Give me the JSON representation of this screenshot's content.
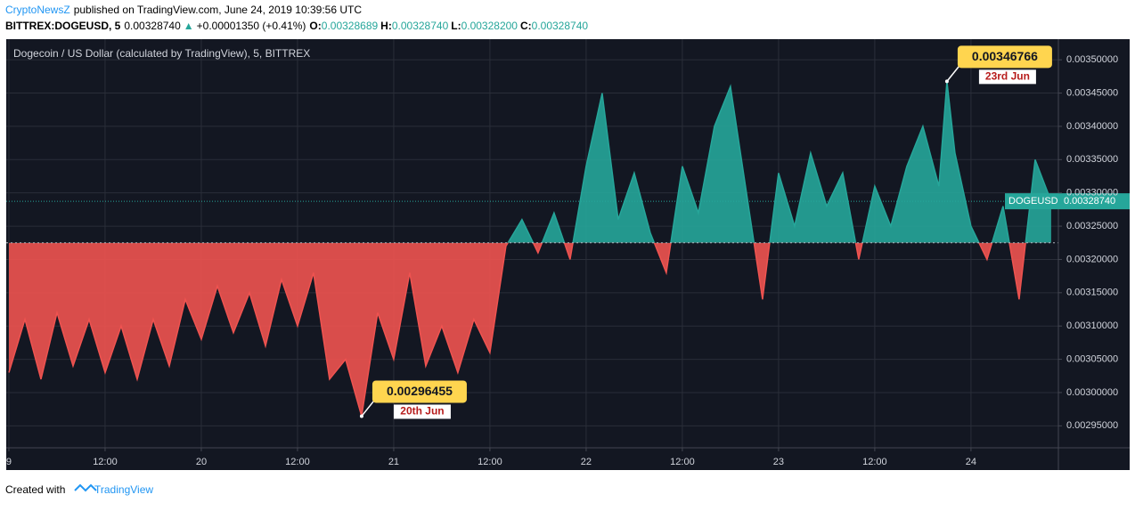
{
  "header": {
    "publisher": "CryptoNewsZ",
    "published": "published on TradingView.com, June 24, 2019 10:39:56 UTC",
    "symbol": "BITTREX:DOGEUSD, 5",
    "last": "0.00328740",
    "arrow": "▲",
    "change": "+0.00001350 (+0.41%)",
    "o_label": "O:",
    "o": "0.00328689",
    "h_label": "H:",
    "h": "0.00328740",
    "l_label": "L:",
    "l": "0.00328200",
    "c_label": "C:",
    "c": "0.00328740"
  },
  "chart_data": {
    "type": "baseline",
    "title": "Dogecoin / US Dollar (calculated by TradingView), 5, BITTREX",
    "x": [
      0,
      2,
      4,
      6,
      8,
      10,
      12,
      14,
      16,
      18,
      20,
      22,
      24,
      26,
      28,
      30,
      32,
      34,
      36,
      38,
      40,
      42,
      44,
      46,
      48,
      50,
      52,
      54,
      56,
      58,
      60,
      62,
      64,
      66,
      68,
      70,
      72,
      74,
      76,
      78,
      80,
      82,
      84,
      86,
      88,
      90,
      92,
      94,
      96,
      98,
      100,
      102,
      104,
      106,
      108,
      110,
      112,
      114,
      116,
      117,
      118,
      120,
      122,
      124,
      126,
      128,
      130
    ],
    "series": [
      {
        "name": "DOGEUSD",
        "color_up": "#26a69a",
        "color_down": "#ef5350",
        "values": [
          0.00303,
          0.00311,
          0.00302,
          0.00312,
          0.00304,
          0.00311,
          0.00303,
          0.0031,
          0.00302,
          0.00311,
          0.00304,
          0.00314,
          0.00308,
          0.00316,
          0.00309,
          0.00315,
          0.00307,
          0.00317,
          0.0031,
          0.00318,
          0.00302,
          0.00305,
          0.00296455,
          0.00312,
          0.00305,
          0.00318,
          0.00304,
          0.0031,
          0.00303,
          0.00311,
          0.00306,
          0.00322,
          0.00326,
          0.00321,
          0.00327,
          0.0032,
          0.00334,
          0.00345,
          0.00326,
          0.00333,
          0.00324,
          0.00318,
          0.00334,
          0.00327,
          0.0034,
          0.00346,
          0.0033,
          0.00314,
          0.00333,
          0.00325,
          0.00336,
          0.00328,
          0.00333,
          0.0032,
          0.00331,
          0.00325,
          0.00334,
          0.0034,
          0.00331,
          0.00346766,
          0.00336,
          0.00325,
          0.0032,
          0.00328,
          0.00314,
          0.00335,
          0.0032874
        ],
        "value_labels": {
          "22": "0.00296455",
          "59": "0.00346766"
        }
      }
    ],
    "baseline": 0.003225,
    "last_price": {
      "name": "DOGEUSD",
      "value": 0.0032874,
      "label": "0.00328740"
    },
    "annotations": [
      {
        "index": 22,
        "date": "20th Jun"
      },
      {
        "index": 59,
        "date": "23rd Jun"
      }
    ],
    "xlim": [
      -0.33,
      130.9
    ],
    "ylim": [
      0.002917,
      0.003531
    ],
    "xticks": [
      {
        "value": 0,
        "label": "9"
      },
      {
        "value": 12,
        "label": "12:00"
      },
      {
        "value": 24,
        "label": "20"
      },
      {
        "value": 36,
        "label": "12:00"
      },
      {
        "value": 48,
        "label": "21"
      },
      {
        "value": 60,
        "label": "12:00"
      },
      {
        "value": 72,
        "label": "22"
      },
      {
        "value": 84,
        "label": "12:00"
      },
      {
        "value": 96,
        "label": "23"
      },
      {
        "value": 108,
        "label": "12:00"
      },
      {
        "value": 120,
        "label": "24"
      }
    ],
    "yticks": [
      {
        "value": 0.00295,
        "label": "0.00295000"
      },
      {
        "value": 0.003,
        "label": "0.00300000"
      },
      {
        "value": 0.00305,
        "label": "0.00305000"
      },
      {
        "value": 0.0031,
        "label": "0.00310000"
      },
      {
        "value": 0.00315,
        "label": "0.00315000"
      },
      {
        "value": 0.0032,
        "label": "0.00320000"
      },
      {
        "value": 0.00325,
        "label": "0.00325000"
      },
      {
        "value": 0.0033,
        "label": "0.00330000"
      },
      {
        "value": 0.00335,
        "label": "0.00335000"
      },
      {
        "value": 0.0034,
        "label": "0.00340000"
      },
      {
        "value": 0.00345,
        "label": "0.00345000"
      },
      {
        "value": 0.0035,
        "label": "0.00350000"
      }
    ],
    "grid": true
  },
  "footer": {
    "created": "Created with",
    "brand": "TradingView"
  }
}
